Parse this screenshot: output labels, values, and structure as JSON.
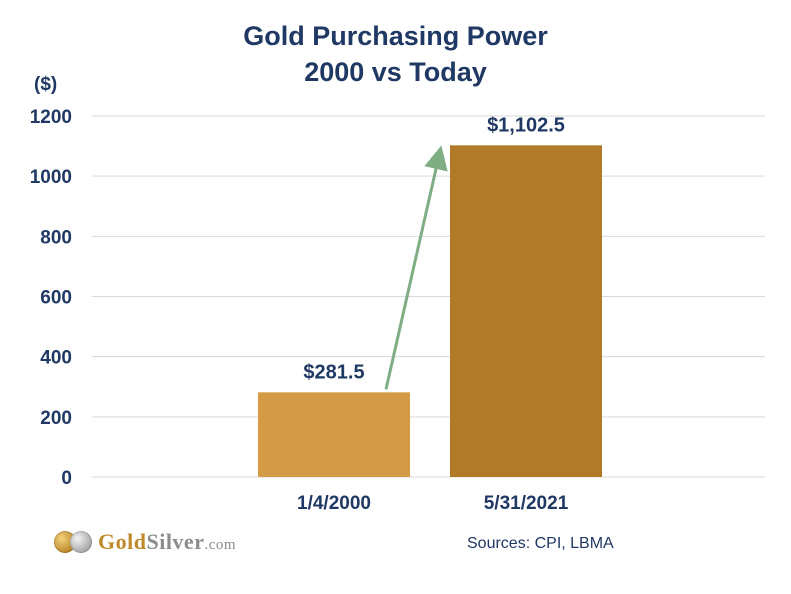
{
  "chart_data": {
    "type": "bar",
    "title": "Gold Purchasing Power",
    "subtitle": "2000 vs Today",
    "ylabel": "($)",
    "xlabel": "",
    "categories": [
      "1/4/2000",
      "5/31/2021"
    ],
    "values": [
      281.5,
      1102.5
    ],
    "data_labels": [
      "$281.5",
      "$1,102.5"
    ],
    "ylim": [
      0,
      1200
    ],
    "yticks": [
      0,
      200,
      400,
      600,
      800,
      1000,
      1200
    ],
    "grid": true,
    "bar_colors": [
      "#d49a45",
      "#b07a28"
    ],
    "annotation": "arrow from first bar to second bar",
    "arrow_color": "#7fae84"
  },
  "logo": {
    "name": "GoldSilver.com",
    "part_gold": "Gold",
    "part_silver": "Silver",
    "part_domain": ".com"
  },
  "sources": "Sources: CPI,  LBMA",
  "colors": {
    "text": "#1f3864",
    "grid": "#d9d9d9"
  }
}
